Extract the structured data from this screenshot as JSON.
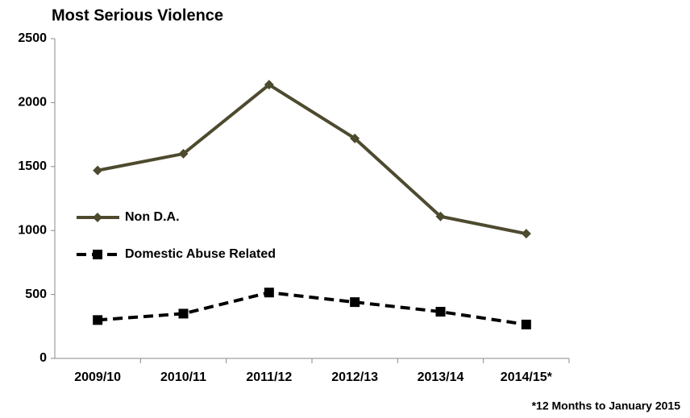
{
  "chart_data": {
    "type": "line",
    "title": "Most Serious Violence",
    "categories": [
      "2009/10",
      "2010/11",
      "2011/12",
      "2012/13",
      "2013/14",
      "2014/15*"
    ],
    "series": [
      {
        "name": "Non D.A.",
        "color": "#4d4a2f",
        "marker": "diamond",
        "dashed": false,
        "values": [
          1470,
          1600,
          2140,
          1720,
          1110,
          975
        ]
      },
      {
        "name": "Domestic Abuse Related",
        "color": "#000000",
        "marker": "square",
        "dashed": true,
        "values": [
          300,
          350,
          515,
          440,
          365,
          265
        ]
      }
    ],
    "ylim": [
      0,
      2500
    ],
    "yticks": [
      0,
      500,
      1000,
      1500,
      2000,
      2500
    ],
    "grid": false,
    "annotation": "*12 Months to January 2015"
  }
}
